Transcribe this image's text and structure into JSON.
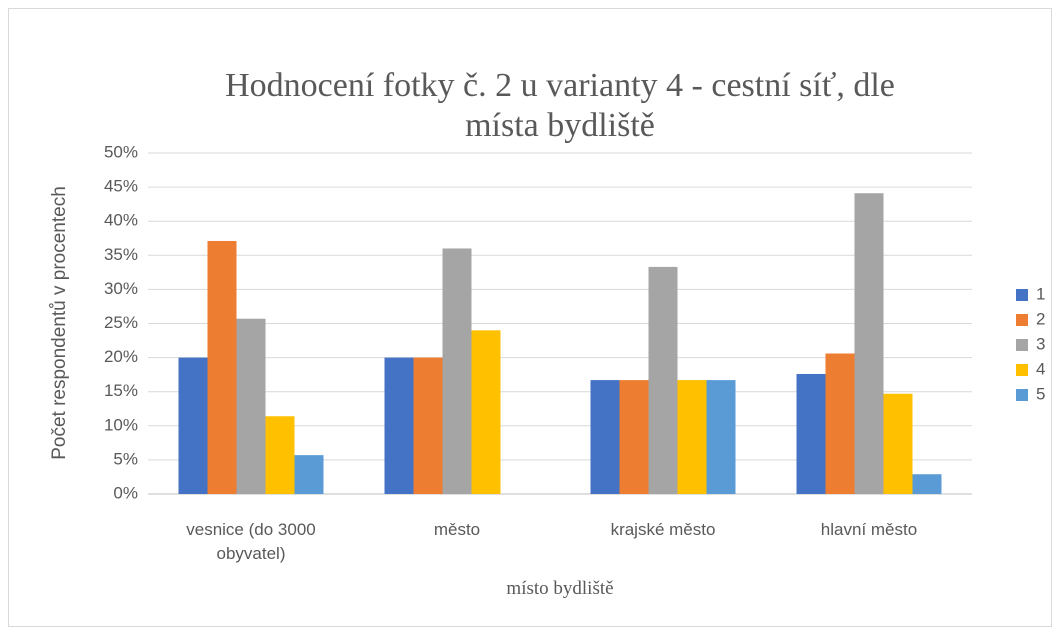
{
  "chart_data": {
    "type": "bar",
    "title": "Hodnocení fotky č. 2 u varianty 4 - cestní síť, dle místa bydliště",
    "xlabel": "místo bydliště",
    "ylabel": "Počet respondentů v procentech",
    "categories": [
      "vesnice (do 3000 obyvatel)",
      "město",
      "krajské město",
      "hlavní město"
    ],
    "series": [
      {
        "name": "1",
        "color": "#4472c4",
        "values": [
          20,
          20,
          16.7,
          17.6
        ]
      },
      {
        "name": "2",
        "color": "#ed7d31",
        "values": [
          37.1,
          20,
          16.7,
          20.6
        ]
      },
      {
        "name": "3",
        "color": "#a5a5a5",
        "values": [
          25.7,
          36,
          33.3,
          44.1
        ]
      },
      {
        "name": "4",
        "color": "#ffc000",
        "values": [
          11.4,
          24,
          16.7,
          14.7
        ]
      },
      {
        "name": "5",
        "color": "#5b9bd5",
        "values": [
          5.7,
          0,
          16.7,
          2.9
        ]
      }
    ],
    "ylim": [
      0,
      50
    ],
    "yticks": [
      {
        "value": 0,
        "label": "0%"
      },
      {
        "value": 5,
        "label": "5%"
      },
      {
        "value": 10,
        "label": "10%"
      },
      {
        "value": 15,
        "label": "15%"
      },
      {
        "value": 20,
        "label": "20%"
      },
      {
        "value": 25,
        "label": "25%"
      },
      {
        "value": 30,
        "label": "30%"
      },
      {
        "value": 35,
        "label": "35%"
      },
      {
        "value": 40,
        "label": "40%"
      },
      {
        "value": 45,
        "label": "45%"
      },
      {
        "value": 50,
        "label": "50%"
      }
    ],
    "grid": true,
    "legend": "right"
  }
}
